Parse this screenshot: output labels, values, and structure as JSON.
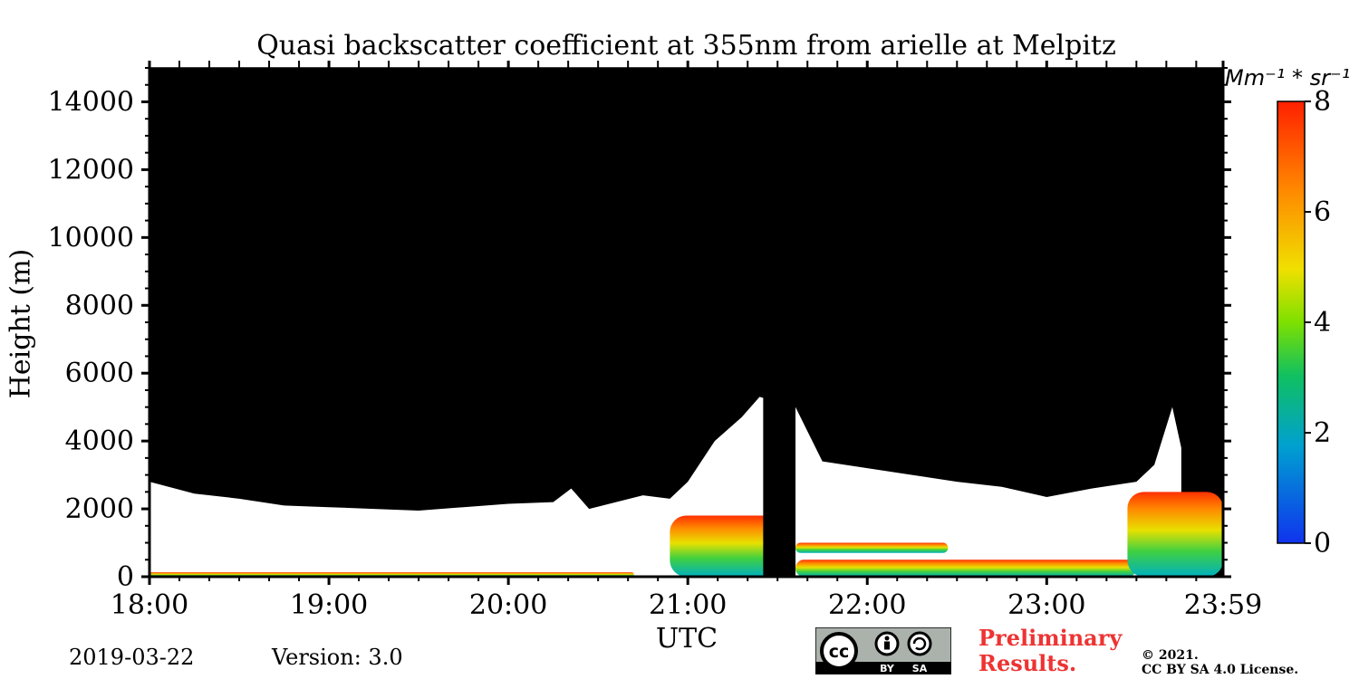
{
  "chart_data": {
    "type": "heatmap",
    "title": "Quasi backscatter coefficient at 355nm from arielle at Melpitz",
    "xlabel": "UTC",
    "ylabel": "Height (m)",
    "x_tick_labels": [
      "18:00",
      "19:00",
      "20:00",
      "21:00",
      "22:00",
      "23:00",
      "23:59"
    ],
    "x_range_hours": [
      18.0,
      23.983
    ],
    "y_ticks": [
      0,
      2000,
      4000,
      6000,
      8000,
      10000,
      12000,
      14000
    ],
    "y_range": [
      0,
      15000
    ],
    "colorbar": {
      "unit": "Mm⁻¹ * sr⁻¹",
      "range": [
        0,
        8
      ],
      "ticks": [
        0,
        2,
        4,
        6,
        8
      ],
      "colors": [
        "#1033ee",
        "#00a0d0",
        "#10c060",
        "#7ee000",
        "#f0e000",
        "#ff8800",
        "#ff2000"
      ]
    },
    "signal_top_boundary": {
      "description_note_free": true,
      "time_utc": [
        18.0,
        18.25,
        18.5,
        18.75,
        19.0,
        19.25,
        19.5,
        19.75,
        20.0,
        20.25,
        20.35,
        20.45,
        20.75,
        20.9,
        21.0,
        21.15,
        21.3,
        21.4,
        21.6,
        21.75,
        22.0,
        22.25,
        22.5,
        22.75,
        23.0,
        23.25,
        23.5,
        23.6,
        23.7,
        23.75
      ],
      "height_m": [
        2800,
        2450,
        2300,
        2100,
        2050,
        2000,
        1950,
        2050,
        2150,
        2200,
        2600,
        2000,
        2400,
        2300,
        2800,
        4000,
        4700,
        5300,
        5000,
        3400,
        3200,
        3000,
        2800,
        2650,
        2350,
        2600,
        2800,
        3300,
        5000,
        3800
      ]
    },
    "aerosol_layers": [
      {
        "time_start": 18.0,
        "time_end": 20.7,
        "base_m": 0,
        "top_m": 130,
        "value": 7.5
      },
      {
        "time_start": 20.9,
        "time_end": 21.6,
        "base_m": 0,
        "top_m": 1800,
        "value": 5.0
      },
      {
        "time_start": 21.6,
        "time_end": 22.45,
        "base_m": 700,
        "top_m": 1000,
        "value": 6.5
      },
      {
        "time_start": 21.6,
        "time_end": 23.5,
        "base_m": 0,
        "top_m": 500,
        "value": 6.0
      },
      {
        "time_start": 23.45,
        "time_end": 23.983,
        "base_m": 0,
        "top_m": 2500,
        "value": 5.0
      }
    ],
    "no_data_periods": [
      {
        "time_start": 21.42,
        "time_end": 21.6
      }
    ]
  },
  "footer": {
    "date": "2019-03-22",
    "version": "Version: 3.0",
    "preliminary_line1": "Preliminary",
    "preliminary_line2": "Results.",
    "copyright_line1": "©  2021.",
    "copyright_line2": "CC BY SA 4.0 License.",
    "cc_by": "BY",
    "cc_sa": "SA",
    "cc_logo_text": "cc"
  }
}
